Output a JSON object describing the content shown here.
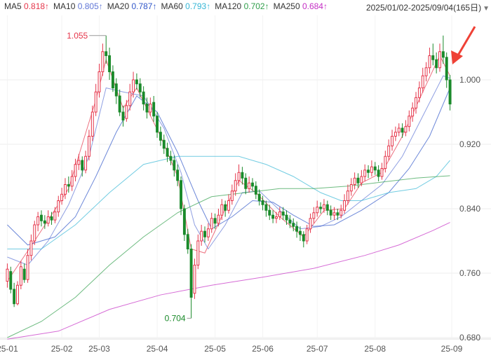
{
  "header": {
    "date_range": "2025/01/02-2025/09/04(165日)",
    "dropdown_icon": "caret-down-icon"
  },
  "legend": [
    {
      "name": "MA5",
      "value": "0.818",
      "trend": "↑",
      "color": "#e5354a"
    },
    {
      "name": "MA10",
      "value": "0.805",
      "trend": "↑",
      "color": "#6076d6"
    },
    {
      "name": "MA20",
      "value": "0.787",
      "trend": "↑",
      "color": "#3157c9"
    },
    {
      "name": "MA60",
      "value": "0.793",
      "trend": "↑",
      "color": "#36b6d6"
    },
    {
      "name": "MA120",
      "value": "0.702",
      "trend": "↑",
      "color": "#2f9e4a"
    },
    {
      "name": "MA250",
      "value": "0.684",
      "trend": "↑",
      "color": "#c42ec4"
    }
  ],
  "chart_data": {
    "type": "candlestick",
    "ylim": [
      0.68,
      1.08
    ],
    "ylim_note": "axis range in price units",
    "y_ticks": [
      "1.000",
      "0.920",
      "0.840",
      "0.760",
      "0.680"
    ],
    "x_ticks": [
      "25-01",
      "25-02",
      "25-03",
      "25-04",
      "25-05",
      "25-06",
      "25-07",
      "25-08",
      "25-09"
    ],
    "up_color": "#e5354a",
    "down_color": "#1a8a2a",
    "high_label": "1.055",
    "low_label": "0.704",
    "candles": [
      [
        0.75,
        0.765,
        0.772,
        0.742
      ],
      [
        0.762,
        0.74,
        0.768,
        0.735
      ],
      [
        0.74,
        0.722,
        0.748,
        0.718
      ],
      [
        0.722,
        0.745,
        0.75,
        0.72
      ],
      [
        0.745,
        0.768,
        0.775,
        0.74
      ],
      [
        0.765,
        0.752,
        0.772,
        0.748
      ],
      [
        0.752,
        0.782,
        0.79,
        0.748
      ],
      [
        0.782,
        0.8,
        0.808,
        0.776
      ],
      [
        0.8,
        0.82,
        0.825,
        0.795
      ],
      [
        0.82,
        0.83,
        0.836,
        0.812
      ],
      [
        0.832,
        0.825,
        0.838,
        0.818
      ],
      [
        0.825,
        0.822,
        0.832,
        0.815
      ],
      [
        0.822,
        0.83,
        0.838,
        0.818
      ],
      [
        0.83,
        0.826,
        0.836,
        0.82
      ],
      [
        0.826,
        0.836,
        0.842,
        0.822
      ],
      [
        0.836,
        0.85,
        0.856,
        0.83
      ],
      [
        0.85,
        0.858,
        0.866,
        0.845
      ],
      [
        0.858,
        0.87,
        0.878,
        0.852
      ],
      [
        0.87,
        0.868,
        0.88,
        0.86
      ],
      [
        0.868,
        0.88,
        0.888,
        0.862
      ],
      [
        0.88,
        0.895,
        0.902,
        0.874
      ],
      [
        0.895,
        0.9,
        0.908,
        0.888
      ],
      [
        0.9,
        0.888,
        0.905,
        0.88
      ],
      [
        0.888,
        0.905,
        0.912,
        0.884
      ],
      [
        0.905,
        0.93,
        0.938,
        0.9
      ],
      [
        0.93,
        0.96,
        0.968,
        0.924
      ],
      [
        0.96,
        0.985,
        0.995,
        0.955
      ],
      [
        0.985,
        1.01,
        1.02,
        0.978
      ],
      [
        1.01,
        1.035,
        1.045,
        1.005
      ],
      [
        1.035,
        1.03,
        1.055,
        1.02
      ],
      [
        1.03,
        1.01,
        1.04,
        1.0
      ],
      [
        1.01,
        0.99,
        1.018,
        0.985
      ],
      [
        0.995,
        0.98,
        1.002,
        0.97
      ],
      [
        0.98,
        0.96,
        0.988,
        0.955
      ],
      [
        0.96,
        0.95,
        0.968,
        0.942
      ],
      [
        0.952,
        0.968,
        0.975,
        0.948
      ],
      [
        0.968,
        0.985,
        0.995,
        0.962
      ],
      [
        0.985,
        1.0,
        1.01,
        0.978
      ],
      [
        1.0,
        0.995,
        1.008,
        0.988
      ],
      [
        0.995,
        0.985,
        1.002,
        0.978
      ],
      [
        0.985,
        0.97,
        0.992,
        0.962
      ],
      [
        0.97,
        0.96,
        0.978,
        0.952
      ],
      [
        0.96,
        0.97,
        0.978,
        0.955
      ],
      [
        0.972,
        0.955,
        0.98,
        0.948
      ],
      [
        0.955,
        0.935,
        0.96,
        0.928
      ],
      [
        0.935,
        0.925,
        0.942,
        0.918
      ],
      [
        0.925,
        0.915,
        0.932,
        0.908
      ],
      [
        0.915,
        0.905,
        0.922,
        0.898
      ],
      [
        0.905,
        0.9,
        0.912,
        0.894
      ],
      [
        0.9,
        0.888,
        0.906,
        0.88
      ],
      [
        0.888,
        0.875,
        0.895,
        0.868
      ],
      [
        0.875,
        0.84,
        0.88,
        0.832
      ],
      [
        0.84,
        0.808,
        0.845,
        0.8
      ],
      [
        0.808,
        0.79,
        0.815,
        0.784
      ],
      [
        0.79,
        0.73,
        0.796,
        0.704
      ],
      [
        0.735,
        0.77,
        0.778,
        0.728
      ],
      [
        0.77,
        0.8,
        0.808,
        0.765
      ],
      [
        0.8,
        0.812,
        0.82,
        0.794
      ],
      [
        0.812,
        0.805,
        0.818,
        0.798
      ],
      [
        0.805,
        0.815,
        0.822,
        0.8
      ],
      [
        0.815,
        0.828,
        0.835,
        0.81
      ],
      [
        0.828,
        0.822,
        0.834,
        0.815
      ],
      [
        0.822,
        0.832,
        0.84,
        0.818
      ],
      [
        0.832,
        0.845,
        0.852,
        0.826
      ],
      [
        0.845,
        0.838,
        0.85,
        0.83
      ],
      [
        0.838,
        0.85,
        0.858,
        0.834
      ],
      [
        0.85,
        0.862,
        0.87,
        0.845
      ],
      [
        0.862,
        0.875,
        0.884,
        0.856
      ],
      [
        0.875,
        0.885,
        0.895,
        0.868
      ],
      [
        0.885,
        0.878,
        0.892,
        0.87
      ],
      [
        0.878,
        0.865,
        0.884,
        0.858
      ],
      [
        0.865,
        0.872,
        0.88,
        0.86
      ],
      [
        0.872,
        0.868,
        0.878,
        0.862
      ],
      [
        0.868,
        0.858,
        0.874,
        0.852
      ],
      [
        0.858,
        0.85,
        0.864,
        0.844
      ],
      [
        0.85,
        0.845,
        0.856,
        0.838
      ],
      [
        0.845,
        0.838,
        0.85,
        0.83
      ],
      [
        0.838,
        0.832,
        0.845,
        0.826
      ],
      [
        0.832,
        0.828,
        0.838,
        0.822
      ],
      [
        0.828,
        0.83,
        0.836,
        0.822
      ],
      [
        0.83,
        0.836,
        0.842,
        0.826
      ],
      [
        0.836,
        0.832,
        0.842,
        0.826
      ],
      [
        0.832,
        0.826,
        0.838,
        0.82
      ],
      [
        0.826,
        0.822,
        0.832,
        0.816
      ],
      [
        0.822,
        0.818,
        0.828,
        0.812
      ],
      [
        0.818,
        0.812,
        0.824,
        0.804
      ],
      [
        0.812,
        0.808,
        0.818,
        0.8
      ],
      [
        0.808,
        0.8,
        0.812,
        0.792
      ],
      [
        0.8,
        0.815,
        0.82,
        0.796
      ],
      [
        0.815,
        0.828,
        0.834,
        0.81
      ],
      [
        0.828,
        0.835,
        0.842,
        0.822
      ],
      [
        0.835,
        0.842,
        0.85,
        0.83
      ],
      [
        0.842,
        0.84,
        0.848,
        0.834
      ],
      [
        0.84,
        0.845,
        0.852,
        0.835
      ],
      [
        0.845,
        0.838,
        0.85,
        0.832
      ],
      [
        0.838,
        0.832,
        0.844,
        0.826
      ],
      [
        0.832,
        0.835,
        0.842,
        0.826
      ],
      [
        0.835,
        0.832,
        0.84,
        0.826
      ],
      [
        0.832,
        0.838,
        0.845,
        0.828
      ],
      [
        0.838,
        0.85,
        0.858,
        0.834
      ],
      [
        0.85,
        0.862,
        0.87,
        0.845
      ],
      [
        0.862,
        0.87,
        0.878,
        0.856
      ],
      [
        0.87,
        0.878,
        0.885,
        0.864
      ],
      [
        0.878,
        0.872,
        0.884,
        0.866
      ],
      [
        0.872,
        0.88,
        0.888,
        0.868
      ],
      [
        0.88,
        0.888,
        0.895,
        0.874
      ],
      [
        0.888,
        0.885,
        0.894,
        0.878
      ],
      [
        0.885,
        0.892,
        0.9,
        0.88
      ],
      [
        0.892,
        0.888,
        0.898,
        0.882
      ],
      [
        0.888,
        0.88,
        0.894,
        0.874
      ],
      [
        0.88,
        0.89,
        0.897,
        0.876
      ],
      [
        0.89,
        0.905,
        0.912,
        0.885
      ],
      [
        0.905,
        0.918,
        0.926,
        0.9
      ],
      [
        0.918,
        0.93,
        0.938,
        0.912
      ],
      [
        0.93,
        0.935,
        0.942,
        0.924
      ],
      [
        0.935,
        0.94,
        0.946,
        0.93
      ],
      [
        0.94,
        0.935,
        0.946,
        0.928
      ],
      [
        0.935,
        0.942,
        0.95,
        0.93
      ],
      [
        0.942,
        0.955,
        0.962,
        0.936
      ],
      [
        0.955,
        0.965,
        0.972,
        0.948
      ],
      [
        0.965,
        0.978,
        0.985,
        0.958
      ],
      [
        0.978,
        0.99,
        0.998,
        0.972
      ],
      [
        0.99,
        1.005,
        1.015,
        0.984
      ],
      [
        1.005,
        1.015,
        1.022,
        0.998
      ],
      [
        1.015,
        1.03,
        1.04,
        1.008
      ],
      [
        1.03,
        1.025,
        1.045,
        1.018
      ],
      [
        1.025,
        1.015,
        1.034,
        1.008
      ],
      [
        1.015,
        1.035,
        1.045,
        1.01
      ],
      [
        1.035,
        1.028,
        1.055,
        1.02
      ],
      [
        1.028,
        1.0,
        1.034,
        0.99
      ],
      [
        1.0,
        0.97,
        1.006,
        0.962
      ]
    ],
    "ma_series": [
      {
        "name": "MA5",
        "color": "#e5354a",
        "points": [
          [
            0,
            0.75
          ],
          [
            8,
            0.8
          ],
          [
            18,
            0.865
          ],
          [
            26,
            0.975
          ],
          [
            29,
            1.025
          ],
          [
            34,
            0.965
          ],
          [
            38,
            0.99
          ],
          [
            45,
            0.93
          ],
          [
            50,
            0.88
          ],
          [
            54,
            0.79
          ],
          [
            58,
            0.785
          ],
          [
            64,
            0.84
          ],
          [
            68,
            0.875
          ],
          [
            73,
            0.86
          ],
          [
            80,
            0.83
          ],
          [
            87,
            0.805
          ],
          [
            93,
            0.838
          ],
          [
            99,
            0.84
          ],
          [
            104,
            0.872
          ],
          [
            110,
            0.885
          ],
          [
            116,
            0.93
          ],
          [
            122,
            0.985
          ],
          [
            127,
            1.03
          ],
          [
            130,
            1.005
          ]
        ]
      },
      {
        "name": "MA10",
        "color": "#6076d6",
        "points": [
          [
            0,
            0.78
          ],
          [
            6,
            0.77
          ],
          [
            12,
            0.8
          ],
          [
            18,
            0.845
          ],
          [
            24,
            0.905
          ],
          [
            29,
            0.99
          ],
          [
            34,
            0.985
          ],
          [
            40,
            0.98
          ],
          [
            46,
            0.94
          ],
          [
            51,
            0.885
          ],
          [
            55,
            0.82
          ],
          [
            59,
            0.79
          ],
          [
            64,
            0.82
          ],
          [
            69,
            0.86
          ],
          [
            74,
            0.862
          ],
          [
            80,
            0.838
          ],
          [
            86,
            0.815
          ],
          [
            92,
            0.818
          ],
          [
            98,
            0.83
          ],
          [
            104,
            0.85
          ],
          [
            110,
            0.87
          ],
          [
            116,
            0.905
          ],
          [
            122,
            0.955
          ],
          [
            128,
            1.005
          ],
          [
            130,
            1.002
          ]
        ]
      },
      {
        "name": "MA20",
        "color": "#3157c9",
        "points": [
          [
            0,
            0.82
          ],
          [
            6,
            0.795
          ],
          [
            14,
            0.805
          ],
          [
            20,
            0.83
          ],
          [
            26,
            0.88
          ],
          [
            32,
            0.935
          ],
          [
            38,
            0.98
          ],
          [
            44,
            0.96
          ],
          [
            50,
            0.91
          ],
          [
            56,
            0.85
          ],
          [
            60,
            0.815
          ],
          [
            66,
            0.83
          ],
          [
            72,
            0.85
          ],
          [
            78,
            0.848
          ],
          [
            84,
            0.832
          ],
          [
            90,
            0.818
          ],
          [
            96,
            0.82
          ],
          [
            104,
            0.838
          ],
          [
            112,
            0.86
          ],
          [
            118,
            0.89
          ],
          [
            124,
            0.93
          ],
          [
            130,
            0.99
          ]
        ]
      },
      {
        "name": "MA60",
        "color": "#36b6d6",
        "points": [
          [
            0,
            0.79
          ],
          [
            10,
            0.79
          ],
          [
            20,
            0.82
          ],
          [
            30,
            0.86
          ],
          [
            40,
            0.895
          ],
          [
            50,
            0.905
          ],
          [
            60,
            0.905
          ],
          [
            68,
            0.905
          ],
          [
            76,
            0.895
          ],
          [
            84,
            0.88
          ],
          [
            92,
            0.86
          ],
          [
            98,
            0.85
          ],
          [
            104,
            0.85
          ],
          [
            112,
            0.86
          ],
          [
            120,
            0.865
          ],
          [
            126,
            0.88
          ],
          [
            130,
            0.9
          ]
        ]
      },
      {
        "name": "MA120",
        "color": "#2f9e4a",
        "points": [
          [
            0,
            0.68
          ],
          [
            10,
            0.7
          ],
          [
            20,
            0.73
          ],
          [
            30,
            0.77
          ],
          [
            40,
            0.805
          ],
          [
            50,
            0.835
          ],
          [
            60,
            0.855
          ],
          [
            70,
            0.86
          ],
          [
            80,
            0.865
          ],
          [
            90,
            0.865
          ],
          [
            100,
            0.868
          ],
          [
            110,
            0.873
          ],
          [
            120,
            0.878
          ],
          [
            130,
            0.881
          ]
        ]
      },
      {
        "name": "MA250",
        "color": "#c42ec4",
        "points": [
          [
            0,
            0.678
          ],
          [
            15,
            0.688
          ],
          [
            30,
            0.715
          ],
          [
            45,
            0.733
          ],
          [
            60,
            0.745
          ],
          [
            75,
            0.755
          ],
          [
            90,
            0.766
          ],
          [
            105,
            0.782
          ],
          [
            115,
            0.795
          ],
          [
            125,
            0.813
          ],
          [
            130,
            0.823
          ]
        ]
      }
    ]
  }
}
